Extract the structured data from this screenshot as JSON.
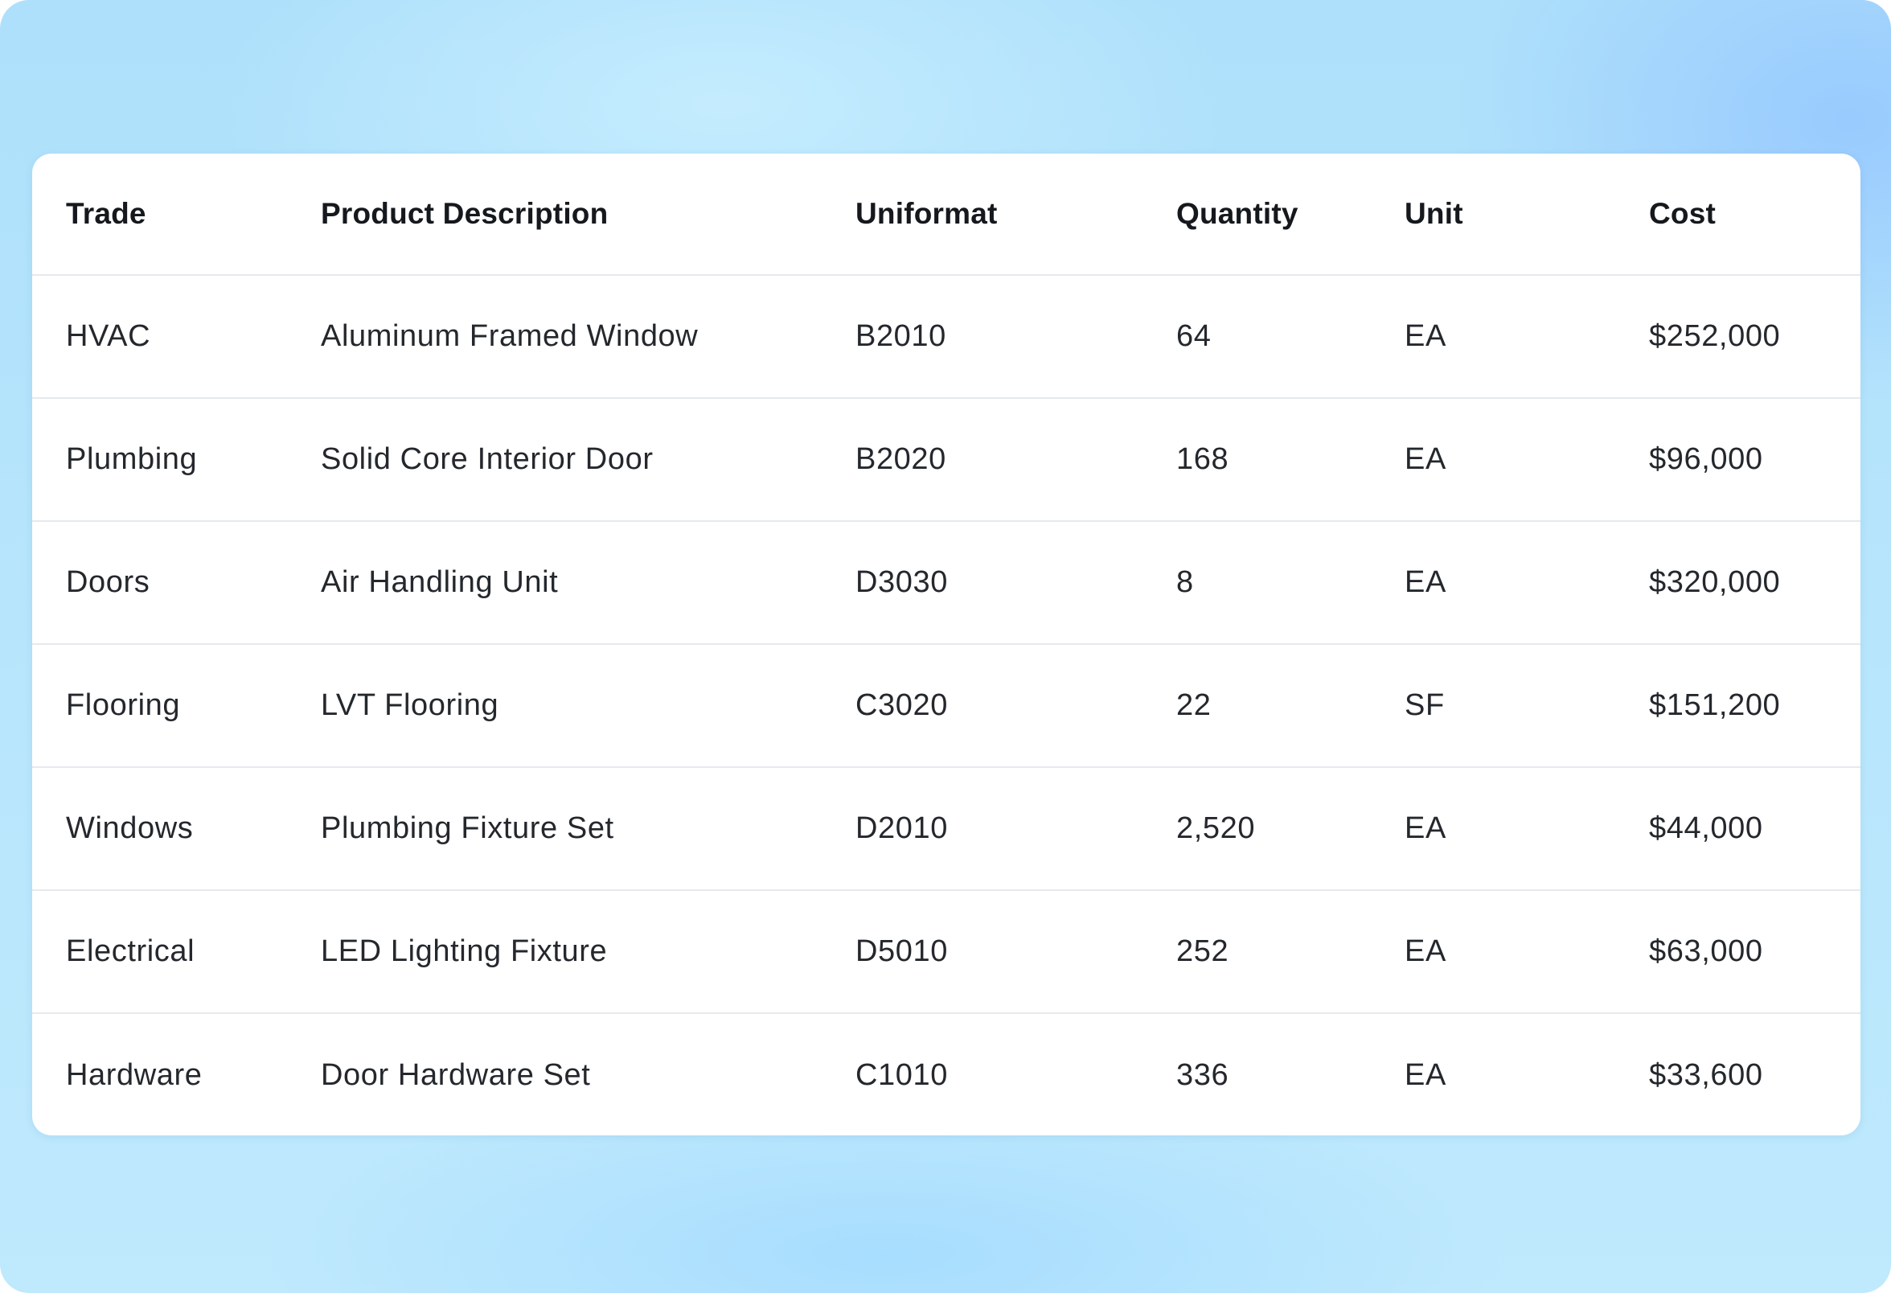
{
  "table": {
    "columns": [
      "Trade",
      "Product Description",
      "Uniformat",
      "Quantity",
      "Unit",
      "Cost"
    ],
    "rows": [
      [
        "HVAC",
        "Aluminum Framed Window",
        "B2010",
        "64",
        "EA",
        "$252,000"
      ],
      [
        "Plumbing",
        "Solid Core Interior Door",
        "B2020",
        "168",
        "EA",
        "$96,000"
      ],
      [
        "Doors",
        "Air Handling Unit",
        "D3030",
        "8",
        "EA",
        "$320,000"
      ],
      [
        "Flooring",
        "LVT Flooring",
        "C3020",
        "22",
        "SF",
        "$151,200"
      ],
      [
        "Windows",
        "Plumbing Fixture Set",
        "D2010",
        "2,520",
        "EA",
        "$44,000"
      ],
      [
        "Electrical",
        "LED Lighting Fixture",
        "D5010",
        "252",
        "EA",
        "$63,000"
      ],
      [
        "Hardware",
        "Door Hardware Set",
        "C1010",
        "336",
        "EA",
        "$33,600"
      ]
    ]
  },
  "colors": {
    "background": "#b8e6fc",
    "card": "#ffffff",
    "text": "#24282d",
    "divider": "#e6e9ed"
  }
}
